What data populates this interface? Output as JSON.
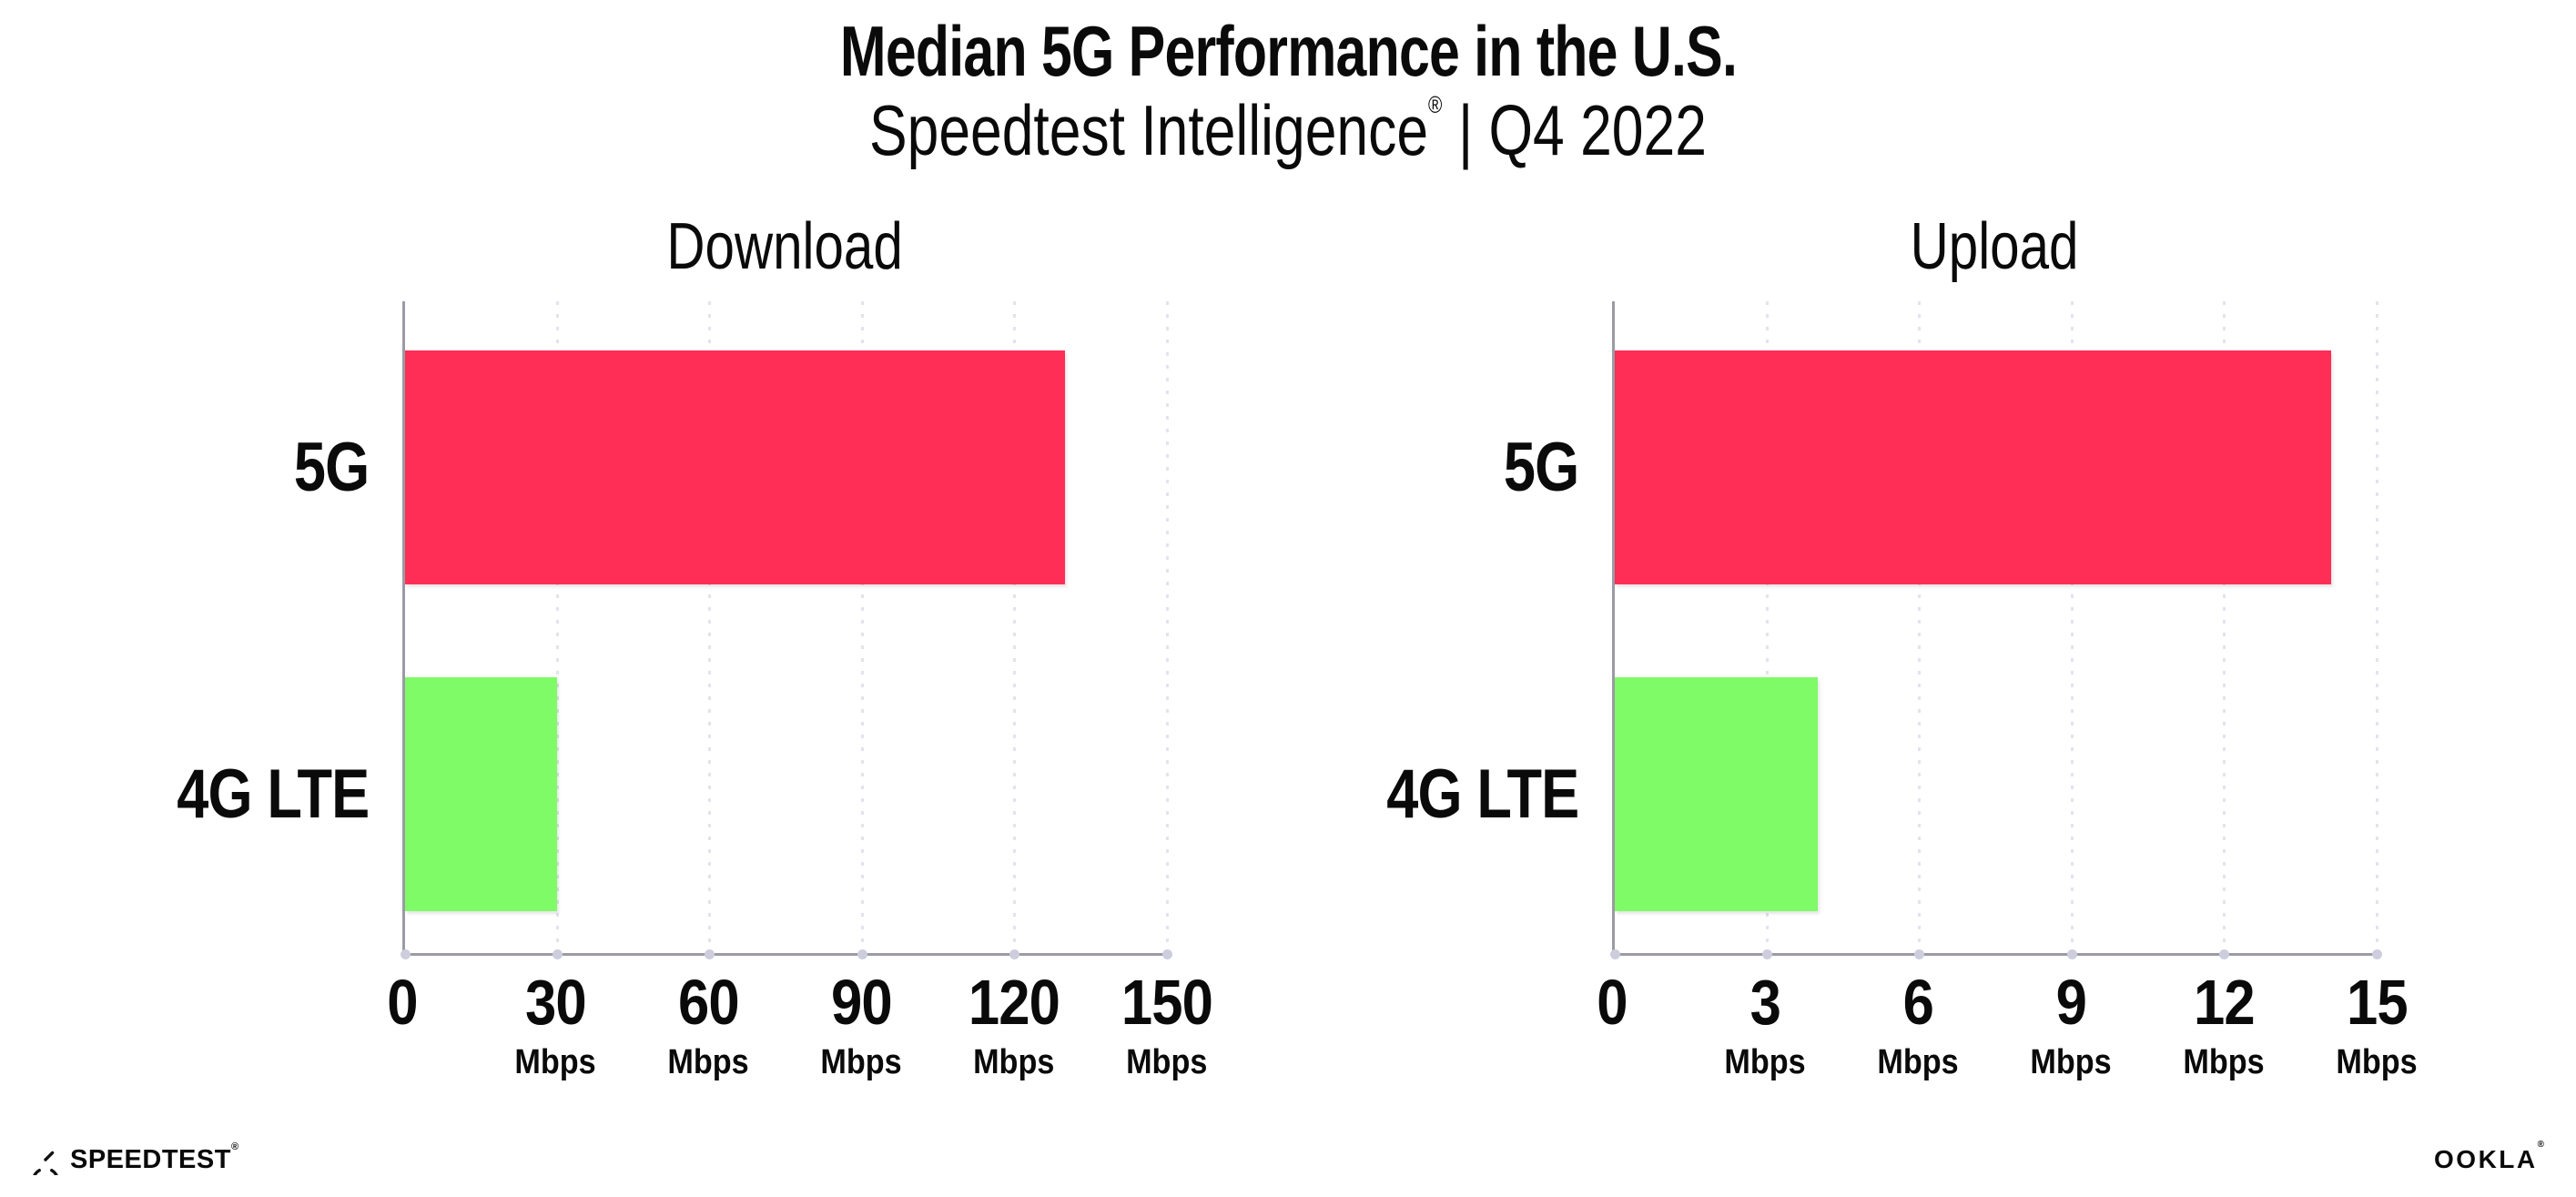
{
  "header": {
    "title": "Median 5G Performance in the U.S.",
    "subtitle_brand": "Speedtest Intelligence",
    "subtitle_reg": "®",
    "subtitle_rest": "| Q4 2022"
  },
  "chart_data": [
    {
      "type": "bar",
      "orientation": "horizontal",
      "title": "Download",
      "categories": [
        "5G",
        "4G LTE"
      ],
      "values": [
        130,
        30
      ],
      "value_unit": "Mbps",
      "xlim": [
        0,
        150
      ],
      "xticks": [
        0,
        30,
        60,
        90,
        120,
        150
      ],
      "xtick_unit_label": "Mbps",
      "bar_colors": [
        "#FF2E56",
        "#80FB68"
      ],
      "grid": "vertical-dotted",
      "legend": "none"
    },
    {
      "type": "bar",
      "orientation": "horizontal",
      "title": "Upload",
      "categories": [
        "5G",
        "4G LTE"
      ],
      "values": [
        14.1,
        4
      ],
      "value_unit": "Mbps",
      "xlim": [
        0,
        15
      ],
      "xticks": [
        0,
        3,
        6,
        9,
        12,
        15
      ],
      "xtick_unit_label": "Mbps",
      "bar_colors": [
        "#FF2E56",
        "#80FB68"
      ],
      "grid": "vertical-dotted",
      "legend": "none"
    }
  ],
  "colors": {
    "bar_5g": "#FF2E56",
    "bar_4g_lte": "#80FB68",
    "axis_line": "#9b9ba3",
    "gridline": "#e3e3ef",
    "text": "#0a0a0b"
  },
  "footer": {
    "speedtest_text": "SPEEDTEST",
    "speedtest_mark": "®",
    "ookla_text": "OOKLA",
    "ookla_mark": "®"
  }
}
